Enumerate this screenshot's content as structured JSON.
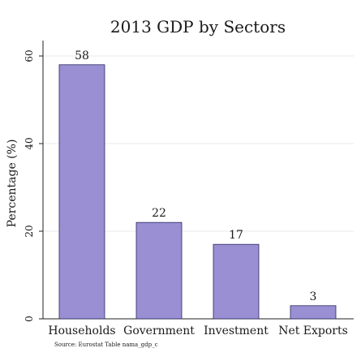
{
  "chart_data": {
    "type": "bar",
    "title": "2013 GDP by Sectors",
    "categories": [
      "Households",
      "Government",
      "Investment",
      "Net Exports"
    ],
    "values": [
      58,
      22,
      17,
      3
    ],
    "ylabel": "Percentage (%)",
    "xlabel": "",
    "ylim": [
      0,
      60
    ],
    "yticks": [
      0,
      20,
      40,
      60
    ],
    "grid": true,
    "bar_color": "#9a8fd3",
    "bar_edge_color": "#2a2a60",
    "source": "Source: Eurostat Table nama_gdp_c"
  }
}
